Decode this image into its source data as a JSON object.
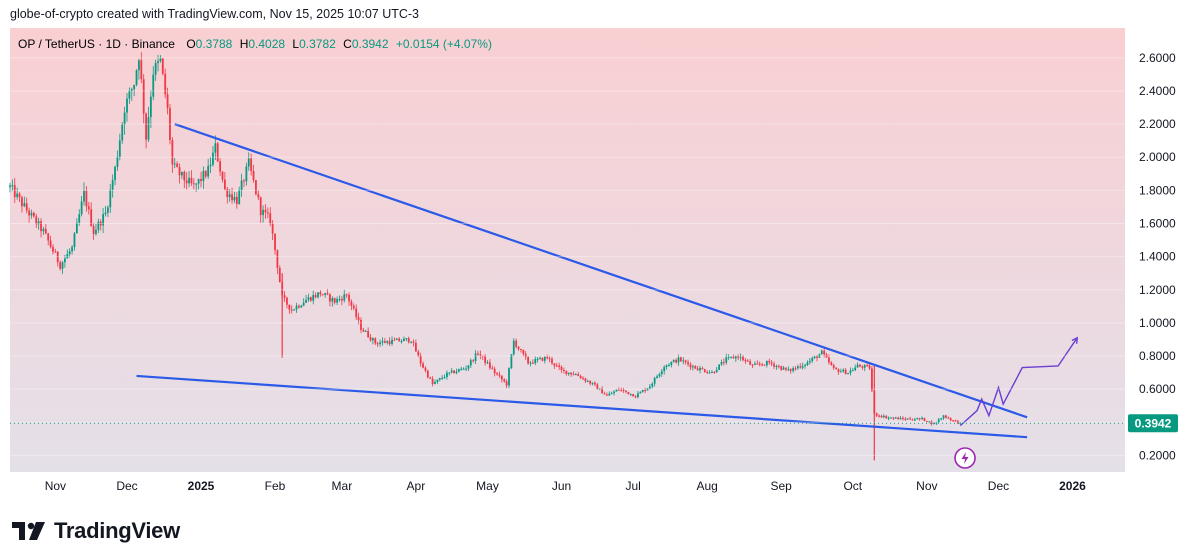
{
  "header": {
    "attribution": "globe-of-crypto created with TradingView.com, Nov 15, 2025 10:07 UTC-3"
  },
  "brand": {
    "name": "TradingView",
    "icon": "tradingview-logo-icon"
  },
  "chart_data": {
    "type": "candlestick",
    "symbol_line": "OP / TetherUS · 1D · Binance",
    "ohlc": {
      "open_label": "O",
      "open": "0.3788",
      "high_label": "H",
      "high": "0.4028",
      "low_label": "L",
      "low": "0.3782",
      "close_label": "C",
      "close": "0.3942",
      "change": "+0.0154 (+4.07%)"
    },
    "last_price": "0.3942",
    "y_ticks": [
      "0.2000",
      "0.4000",
      "0.6000",
      "0.8000",
      "1.0000",
      "1.2000",
      "1.4000",
      "1.6000",
      "1.8000",
      "2.0000",
      "2.2000",
      "2.4000",
      "2.6000"
    ],
    "ylim": [
      0.1,
      2.78
    ],
    "x_ticks": [
      {
        "label": "Nov",
        "date": "2024-11-01",
        "bold": false
      },
      {
        "label": "Dec",
        "date": "2024-12-01",
        "bold": false
      },
      {
        "label": "2025",
        "date": "2025-01-01",
        "bold": true
      },
      {
        "label": "Feb",
        "date": "2025-02-01",
        "bold": false
      },
      {
        "label": "Mar",
        "date": "2025-03-01",
        "bold": false
      },
      {
        "label": "Apr",
        "date": "2025-04-01",
        "bold": false
      },
      {
        "label": "May",
        "date": "2025-05-01",
        "bold": false
      },
      {
        "label": "Jun",
        "date": "2025-06-01",
        "bold": false
      },
      {
        "label": "Jul",
        "date": "2025-07-01",
        "bold": false
      },
      {
        "label": "Aug",
        "date": "2025-08-01",
        "bold": false
      },
      {
        "label": "Sep",
        "date": "2025-09-01",
        "bold": false
      },
      {
        "label": "Oct",
        "date": "2025-10-01",
        "bold": false
      },
      {
        "label": "Nov",
        "date": "2025-11-01",
        "bold": false
      },
      {
        "label": "Dec",
        "date": "2025-12-01",
        "bold": false
      },
      {
        "label": "2026",
        "date": "2026-01-01",
        "bold": true
      }
    ],
    "xlim": [
      "2024-10-13",
      "2026-01-23"
    ],
    "price_path": [
      [
        "2024-10-13",
        1.82
      ],
      [
        "2024-10-20",
        1.68
      ],
      [
        "2024-10-27",
        1.55
      ],
      [
        "2024-11-03",
        1.35
      ],
      [
        "2024-11-08",
        1.45
      ],
      [
        "2024-11-13",
        1.78
      ],
      [
        "2024-11-17",
        1.55
      ],
      [
        "2024-11-22",
        1.66
      ],
      [
        "2024-11-26",
        1.93
      ],
      [
        "2024-11-30",
        2.3
      ],
      [
        "2024-12-04",
        2.45
      ],
      [
        "2024-12-06",
        2.62
      ],
      [
        "2024-12-09",
        2.12
      ],
      [
        "2024-12-12",
        2.52
      ],
      [
        "2024-12-15",
        2.58
      ],
      [
        "2024-12-18",
        2.28
      ],
      [
        "2024-12-20",
        1.95
      ],
      [
        "2024-12-24",
        1.88
      ],
      [
        "2024-12-29",
        1.82
      ],
      [
        "2025-01-04",
        1.92
      ],
      [
        "2025-01-07",
        2.06
      ],
      [
        "2025-01-11",
        1.8
      ],
      [
        "2025-01-16",
        1.74
      ],
      [
        "2025-01-21",
        1.96
      ],
      [
        "2025-01-26",
        1.68
      ],
      [
        "2025-01-30",
        1.62
      ],
      [
        "2025-02-02",
        1.35
      ],
      [
        "2025-02-04",
        1.15
      ],
      [
        "2025-02-08",
        1.08
      ],
      [
        "2025-02-14",
        1.14
      ],
      [
        "2025-02-20",
        1.18
      ],
      [
        "2025-02-26",
        1.13
      ],
      [
        "2025-03-03",
        1.17
      ],
      [
        "2025-03-09",
        0.97
      ],
      [
        "2025-03-15",
        0.88
      ],
      [
        "2025-03-23",
        0.89
      ],
      [
        "2025-03-30",
        0.9
      ],
      [
        "2025-04-03",
        0.76
      ],
      [
        "2025-04-08",
        0.63
      ],
      [
        "2025-04-14",
        0.69
      ],
      [
        "2025-04-22",
        0.73
      ],
      [
        "2025-04-27",
        0.82
      ],
      [
        "2025-05-04",
        0.7
      ],
      [
        "2025-05-09",
        0.63
      ],
      [
        "2025-05-12",
        0.89
      ],
      [
        "2025-05-18",
        0.76
      ],
      [
        "2025-05-26",
        0.79
      ],
      [
        "2025-06-01",
        0.71
      ],
      [
        "2025-06-07",
        0.69
      ],
      [
        "2025-06-14",
        0.63
      ],
      [
        "2025-06-20",
        0.56
      ],
      [
        "2025-06-25",
        0.6
      ],
      [
        "2025-07-02",
        0.56
      ],
      [
        "2025-07-08",
        0.62
      ],
      [
        "2025-07-14",
        0.74
      ],
      [
        "2025-07-20",
        0.78
      ],
      [
        "2025-07-27",
        0.73
      ],
      [
        "2025-08-03",
        0.7
      ],
      [
        "2025-08-09",
        0.78
      ],
      [
        "2025-08-14",
        0.8
      ],
      [
        "2025-08-20",
        0.74
      ],
      [
        "2025-08-27",
        0.76
      ],
      [
        "2025-09-04",
        0.71
      ],
      [
        "2025-09-12",
        0.76
      ],
      [
        "2025-09-18",
        0.82
      ],
      [
        "2025-09-23",
        0.72
      ],
      [
        "2025-09-29",
        0.7
      ],
      [
        "2025-10-03",
        0.74
      ],
      [
        "2025-10-08",
        0.73
      ],
      [
        "2025-10-10",
        0.45
      ],
      [
        "2025-10-15",
        0.43
      ],
      [
        "2025-10-22",
        0.42
      ],
      [
        "2025-10-30",
        0.42
      ],
      [
        "2025-11-04",
        0.39
      ],
      [
        "2025-11-08",
        0.44
      ],
      [
        "2025-11-12",
        0.41
      ],
      [
        "2025-11-15",
        0.3942
      ]
    ],
    "spikes": [
      {
        "date": "2025-10-10",
        "low": 0.17,
        "high": 0.74
      },
      {
        "date": "2025-02-04",
        "low": 0.79,
        "high": 1.3
      }
    ],
    "colors": {
      "up": "#089981",
      "down": "#f23645",
      "trendline": "#2b59e8",
      "projection": "#6a3fd4",
      "label_bg": "#089981",
      "bg_top": "#f9cfd2",
      "bg_bottom": "#e3e1ea"
    },
    "trendlines": [
      {
        "name": "upper",
        "from": [
          "2024-12-21",
          2.2
        ],
        "to": [
          "2025-12-13",
          0.43
        ]
      },
      {
        "name": "lower",
        "from": [
          "2024-12-05",
          0.68
        ],
        "to": [
          "2025-12-13",
          0.31
        ]
      }
    ],
    "projection_path": [
      [
        "2025-11-15",
        0.38
      ],
      [
        "2025-11-22",
        0.47
      ],
      [
        "2025-11-24",
        0.54
      ],
      [
        "2025-11-27",
        0.44
      ],
      [
        "2025-12-01",
        0.61
      ],
      [
        "2025-12-03",
        0.51
      ],
      [
        "2025-12-11",
        0.73
      ],
      [
        "2025-12-26",
        0.74
      ],
      [
        "2026-01-03",
        0.91
      ]
    ],
    "event_marker": {
      "icon": "lightning-icon",
      "date": "2025-11-17",
      "position": "below-axis"
    }
  }
}
